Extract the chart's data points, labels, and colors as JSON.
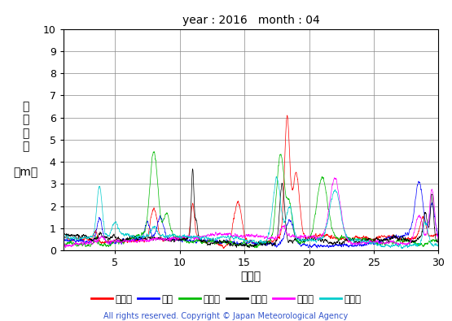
{
  "title": "year : 2016   month : 04",
  "xlabel": "（日）",
  "ylabel_chars": [
    "有",
    "義",
    "波",
    "高",
    "",
    "（m）"
  ],
  "xlim": [
    1,
    30
  ],
  "ylim": [
    0,
    10
  ],
  "yticks": [
    0,
    1,
    2,
    3,
    4,
    5,
    6,
    7,
    8,
    9,
    10
  ],
  "xticks": [
    5,
    10,
    15,
    20,
    25,
    30
  ],
  "copyright": "All rights reserved. Copyright © Japan Meteorological Agency",
  "legend": [
    {
      "label": "上ノ国",
      "color": "#ff0000"
    },
    {
      "label": "唐桑",
      "color": "#0000ff"
    },
    {
      "label": "石廈崎",
      "color": "#00bb00"
    },
    {
      "label": "経ケ岬",
      "color": "#000000"
    },
    {
      "label": "生月島",
      "color": "#ff00ff"
    },
    {
      "label": "屋久島",
      "color": "#00cccc"
    }
  ],
  "background": "#ffffff",
  "grid_color": "#888888",
  "linewidth": 0.5
}
